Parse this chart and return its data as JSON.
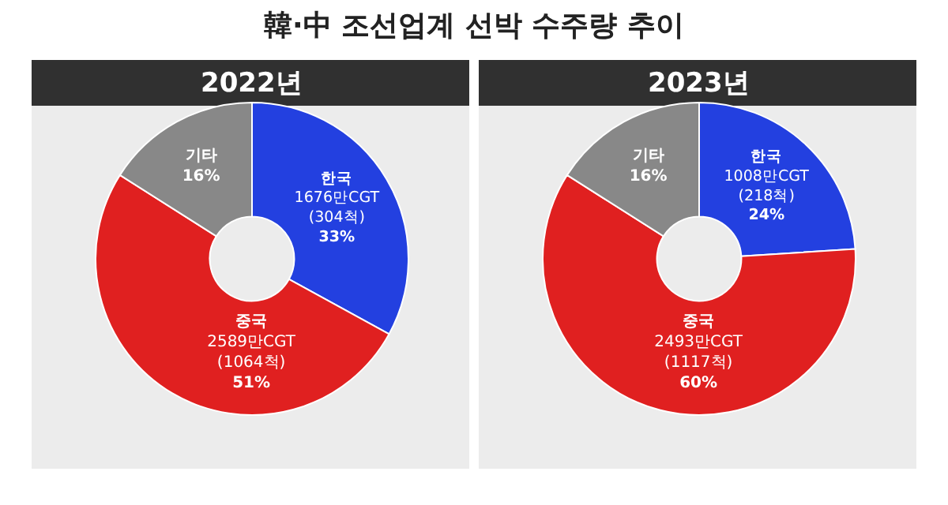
{
  "chart_data": [
    {
      "type": "donut",
      "title": "韓·中 조선업계 선박 수주량 추이",
      "subtitle": "2022년",
      "categories": [
        "한국",
        "중국",
        "기타"
      ],
      "values": [
        33,
        51,
        16
      ],
      "colors": [
        "#2340e0",
        "#e02020",
        "#888888"
      ],
      "value_labels": [
        "1676만CGT\n(304척)\n33%",
        "2589만CGT\n(1064척)\n51%",
        "16%"
      ]
    },
    {
      "type": "donut",
      "subtitle": "2023년",
      "categories": [
        "한국",
        "중국",
        "기타"
      ],
      "values": [
        24,
        60,
        16
      ],
      "colors": [
        "#2340e0",
        "#e02020",
        "#888888"
      ],
      "value_labels": [
        "1008만CGT\n(218척)\n24%",
        "2493만CGT\n(1117척)\n60%",
        "16%"
      ]
    }
  ]
}
